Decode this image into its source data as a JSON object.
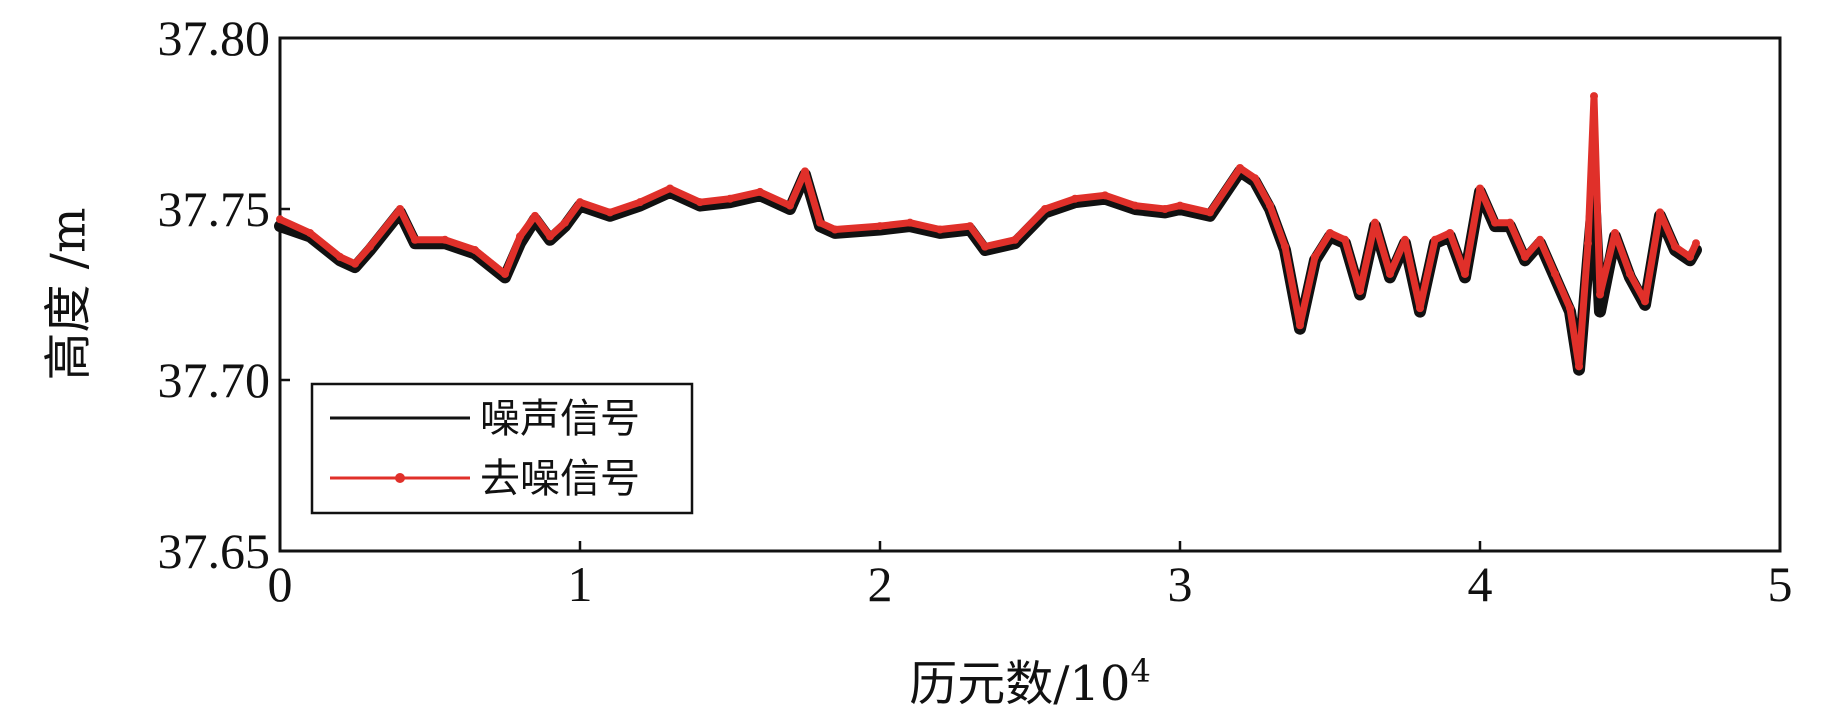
{
  "chart_data": {
    "type": "line",
    "title": "",
    "xlabel": "历元数/10",
    "xlabel_exponent": "4",
    "ylabel": "高度 /m",
    "xlim": [
      0,
      5
    ],
    "ylim": [
      37.65,
      37.8
    ],
    "x_ticks": [
      "0",
      "1",
      "2",
      "3",
      "4",
      "5"
    ],
    "y_ticks": [
      "37.65",
      "37.70",
      "37.75",
      "37.80"
    ],
    "grid": false,
    "legend_position": "bottom-left",
    "series": [
      {
        "name": "噪声信号",
        "color": "#111111",
        "marker": "none",
        "x": [
          0,
          0.1,
          0.2,
          0.25,
          0.3,
          0.4,
          0.45,
          0.55,
          0.65,
          0.75,
          0.8,
          0.85,
          0.9,
          0.95,
          1.0,
          1.1,
          1.2,
          1.3,
          1.4,
          1.5,
          1.6,
          1.7,
          1.75,
          1.8,
          1.85,
          2.0,
          2.1,
          2.2,
          2.3,
          2.35,
          2.45,
          2.55,
          2.65,
          2.75,
          2.85,
          2.95,
          3.0,
          3.1,
          3.2,
          3.25,
          3.3,
          3.35,
          3.4,
          3.45,
          3.5,
          3.55,
          3.6,
          3.65,
          3.7,
          3.75,
          3.8,
          3.85,
          3.9,
          3.95,
          4.0,
          4.05,
          4.1,
          4.15,
          4.2,
          4.25,
          4.3,
          4.33,
          4.36,
          4.38,
          4.4,
          4.45,
          4.5,
          4.55,
          4.6,
          4.65,
          4.7,
          4.72
        ],
        "y": [
          37.745,
          37.742,
          37.735,
          37.733,
          37.738,
          37.749,
          37.74,
          37.74,
          37.737,
          37.73,
          37.74,
          37.747,
          37.741,
          37.745,
          37.751,
          37.748,
          37.751,
          37.755,
          37.751,
          37.752,
          37.754,
          37.75,
          37.76,
          37.745,
          37.743,
          37.744,
          37.745,
          37.743,
          37.744,
          37.738,
          37.74,
          37.749,
          37.752,
          37.753,
          37.75,
          37.749,
          37.75,
          37.748,
          37.761,
          37.758,
          37.75,
          37.738,
          37.715,
          37.735,
          37.742,
          37.74,
          37.725,
          37.745,
          37.73,
          37.74,
          37.72,
          37.74,
          37.742,
          37.73,
          37.755,
          37.745,
          37.745,
          37.735,
          37.74,
          37.73,
          37.72,
          37.703,
          37.735,
          37.755,
          37.72,
          37.742,
          37.73,
          37.722,
          37.748,
          37.738,
          37.735,
          37.738
        ]
      },
      {
        "name": "去噪信号",
        "color": "#e0302a",
        "marker": "dot",
        "x": [
          0,
          0.1,
          0.2,
          0.25,
          0.3,
          0.4,
          0.45,
          0.55,
          0.65,
          0.75,
          0.8,
          0.85,
          0.9,
          0.95,
          1.0,
          1.1,
          1.2,
          1.3,
          1.4,
          1.5,
          1.6,
          1.7,
          1.75,
          1.8,
          1.85,
          2.0,
          2.1,
          2.2,
          2.3,
          2.35,
          2.45,
          2.55,
          2.65,
          2.75,
          2.85,
          2.95,
          3.0,
          3.1,
          3.2,
          3.25,
          3.3,
          3.35,
          3.4,
          3.45,
          3.5,
          3.55,
          3.6,
          3.65,
          3.7,
          3.75,
          3.8,
          3.85,
          3.9,
          3.95,
          4.0,
          4.05,
          4.1,
          4.15,
          4.2,
          4.25,
          4.3,
          4.33,
          4.36,
          4.38,
          4.4,
          4.45,
          4.5,
          4.55,
          4.6,
          4.65,
          4.7,
          4.72
        ],
        "y": [
          37.747,
          37.743,
          37.736,
          37.734,
          37.739,
          37.75,
          37.741,
          37.741,
          37.738,
          37.731,
          37.742,
          37.748,
          37.742,
          37.746,
          37.752,
          37.749,
          37.752,
          37.756,
          37.752,
          37.753,
          37.755,
          37.751,
          37.761,
          37.746,
          37.744,
          37.745,
          37.746,
          37.744,
          37.745,
          37.739,
          37.741,
          37.75,
          37.753,
          37.754,
          37.751,
          37.75,
          37.751,
          37.749,
          37.762,
          37.759,
          37.751,
          37.739,
          37.716,
          37.736,
          37.743,
          37.741,
          37.726,
          37.746,
          37.731,
          37.741,
          37.721,
          37.741,
          37.743,
          37.731,
          37.756,
          37.746,
          37.746,
          37.736,
          37.741,
          37.731,
          37.721,
          37.704,
          37.74,
          37.783,
          37.725,
          37.743,
          37.731,
          37.723,
          37.749,
          37.739,
          37.736,
          37.74
        ]
      }
    ]
  }
}
